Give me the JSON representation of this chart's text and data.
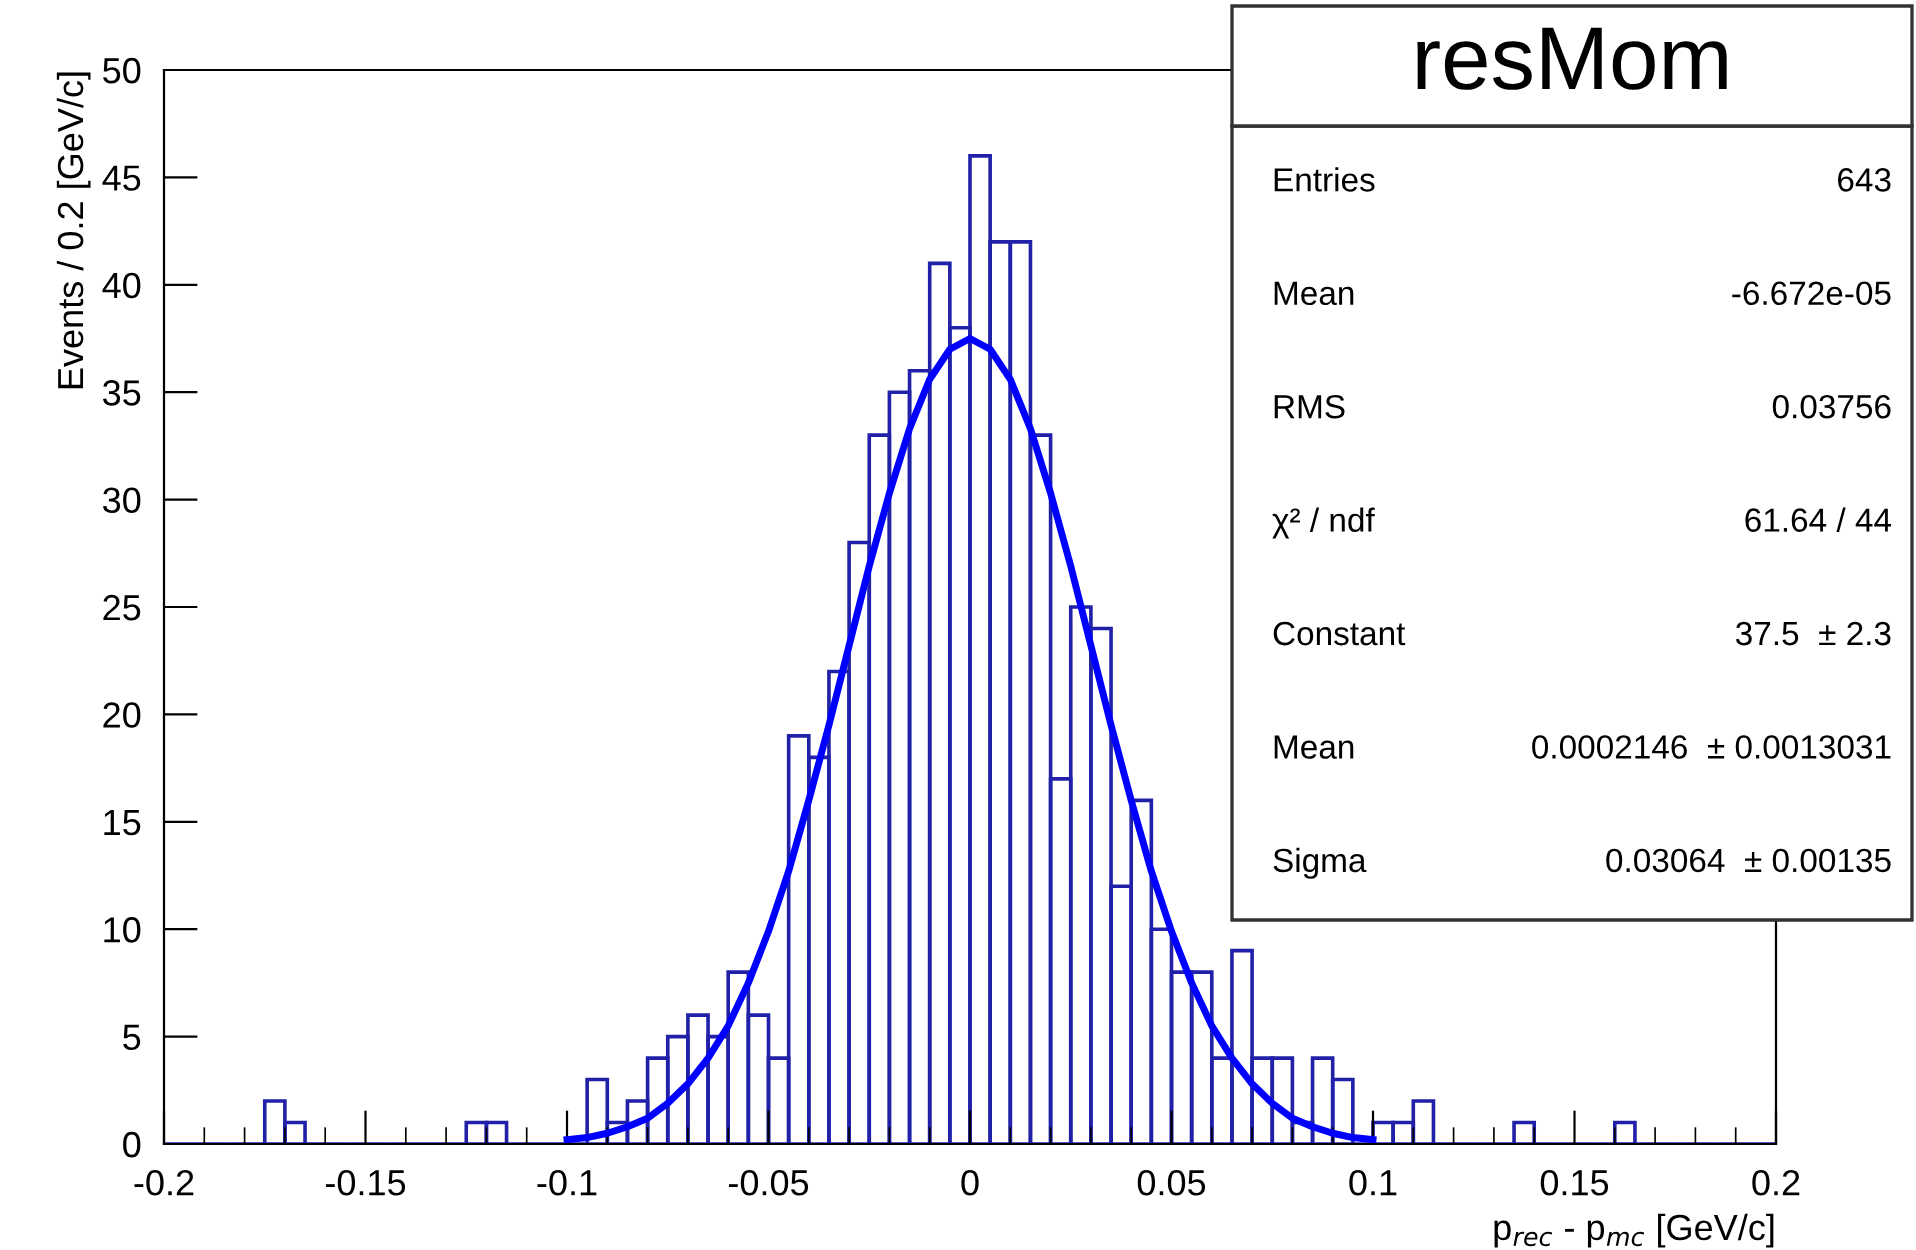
{
  "chart_data": {
    "type": "histogram",
    "title": "resMom",
    "xlabel": "p$_{rec}$ - p$_{mc}$ [GeV/c]",
    "ylabel": "Events / 0.2 [GeV/c]",
    "xlim": [
      -0.2,
      0.2
    ],
    "ylim": [
      0,
      50
    ],
    "xticks": [
      -0.2,
      -0.15,
      -0.1,
      -0.05,
      0,
      0.05,
      0.1,
      0.15,
      0.2
    ],
    "yticks": [
      0,
      5,
      10,
      15,
      20,
      25,
      30,
      35,
      40,
      45,
      50
    ],
    "grid": false,
    "legend": false,
    "series": [
      {
        "color": "#2020a8",
        "bins": [
          -0.2,
          -0.195,
          -0.19,
          -0.185,
          -0.18,
          -0.175,
          -0.17,
          -0.165,
          -0.16,
          -0.155,
          -0.15,
          -0.145,
          -0.14,
          -0.135,
          -0.13,
          -0.125,
          -0.12,
          -0.115,
          -0.11,
          -0.105,
          -0.1,
          -0.095,
          -0.09,
          -0.085,
          -0.08,
          -0.075,
          -0.07,
          -0.065,
          -0.06,
          -0.055,
          -0.05,
          -0.045,
          -0.04,
          -0.035,
          -0.03,
          -0.025,
          -0.02,
          -0.015,
          -0.01,
          -0.005,
          0,
          0.005,
          0.01,
          0.015,
          0.02,
          0.025,
          0.03,
          0.035,
          0.04,
          0.045,
          0.05,
          0.055,
          0.06,
          0.065,
          0.07,
          0.075,
          0.08,
          0.085,
          0.09,
          0.095,
          0.1,
          0.105,
          0.11,
          0.115,
          0.12,
          0.125,
          0.13,
          0.135,
          0.14,
          0.145,
          0.15,
          0.155,
          0.16,
          0.165,
          0.17,
          0.175,
          0.18,
          0.185,
          0.19,
          0.195,
          0.2
        ],
        "values": [
          0,
          0,
          0,
          0,
          0,
          2,
          1,
          0,
          0,
          0,
          0,
          0,
          0,
          0,
          0,
          1,
          1,
          0,
          0,
          0,
          0,
          3,
          1,
          2,
          4,
          5,
          6,
          5,
          8,
          6,
          4,
          19,
          18,
          22,
          28,
          33,
          35,
          36,
          41,
          38,
          46,
          42,
          42,
          33,
          17,
          25,
          24,
          12,
          16,
          10,
          8,
          8,
          4,
          9,
          4,
          4,
          1,
          4,
          3,
          0,
          1,
          1,
          2,
          0,
          0,
          0,
          0,
          1,
          0,
          0,
          0,
          0,
          1,
          0,
          0,
          0,
          0,
          0,
          0,
          0
        ]
      },
      {
        "type": "line",
        "color": "#0000ff",
        "x": [
          -0.1,
          -0.095,
          -0.09,
          -0.085,
          -0.08,
          -0.075,
          -0.07,
          -0.065,
          -0.06,
          -0.055,
          -0.05,
          -0.045,
          -0.04,
          -0.035,
          -0.03,
          -0.025,
          -0.02,
          -0.015,
          -0.01,
          -0.005,
          0,
          0.005,
          0.01,
          0.015,
          0.02,
          0.025,
          0.03,
          0.035,
          0.04,
          0.045,
          0.05,
          0.055,
          0.06,
          0.065,
          0.07,
          0.075,
          0.08,
          0.085,
          0.09,
          0.095,
          0.1
        ],
        "values": [
          0.2,
          0.3,
          0.5,
          0.8,
          1.2,
          1.9,
          2.8,
          4.0,
          5.5,
          7.5,
          9.9,
          12.7,
          16.0,
          19.5,
          23.2,
          26.9,
          30.3,
          33.3,
          35.6,
          37.0,
          37.5,
          37.0,
          35.6,
          33.3,
          30.3,
          26.9,
          23.2,
          19.5,
          16.0,
          12.7,
          9.9,
          7.5,
          5.5,
          4.0,
          2.8,
          1.9,
          1.2,
          0.8,
          0.5,
          0.3,
          0.2
        ]
      }
    ],
    "annotations": [
      "Entries",
      "643",
      "Mean",
      "-6.672e-05",
      "RMS",
      "0.03756",
      "χ² / ndf",
      "61.64 / 44",
      "Constant",
      "37.5  ± 2.3",
      "Mean",
      "0.0002146  ± 0.0013031",
      "Sigma",
      "0.03064  ± 0.00135"
    ]
  }
}
